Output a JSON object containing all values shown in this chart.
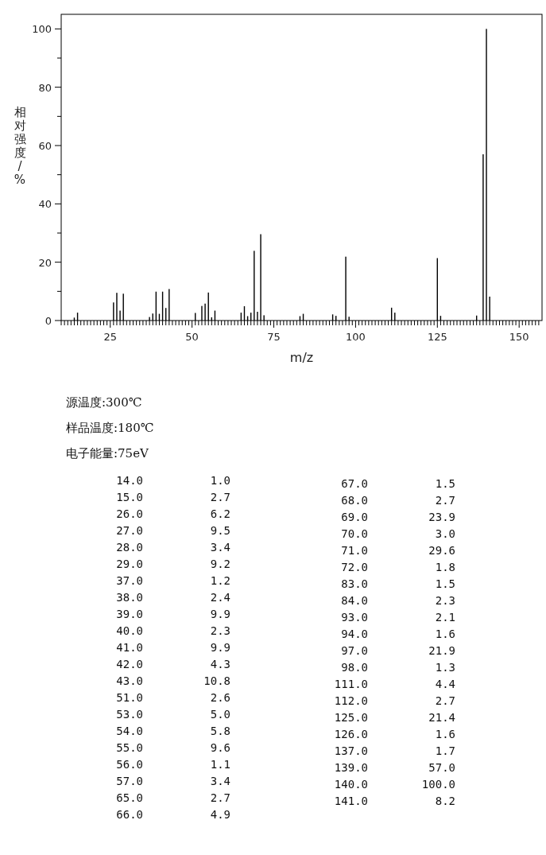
{
  "chart_data": {
    "type": "bar",
    "xlabel": "m/z",
    "ylabel": "相对强度/%",
    "color": "#000000",
    "x": [
      14,
      15,
      26,
      27,
      28,
      29,
      37,
      38,
      39,
      40,
      41,
      42,
      43,
      51,
      53,
      54,
      55,
      56,
      57,
      65,
      66,
      67,
      68,
      69,
      70,
      71,
      72,
      83,
      84,
      93,
      94,
      97,
      98,
      111,
      112,
      125,
      126,
      137,
      139,
      140,
      141
    ],
    "values": [
      1.0,
      2.7,
      6.2,
      9.5,
      3.4,
      9.2,
      1.2,
      2.4,
      9.9,
      2.3,
      9.9,
      4.3,
      10.8,
      2.6,
      5.0,
      5.8,
      9.6,
      1.1,
      3.4,
      2.7,
      4.9,
      1.5,
      2.7,
      23.9,
      3.0,
      29.6,
      1.8,
      1.5,
      2.3,
      2.1,
      1.6,
      21.9,
      1.3,
      4.4,
      2.7,
      21.4,
      1.6,
      1.7,
      57.0,
      100.0,
      8.2
    ],
    "xlim": [
      10,
      157
    ],
    "ylim": [
      0,
      105
    ],
    "xticks": [
      {
        "value": 10,
        "label": null
      },
      {
        "value": 11,
        "label": null
      },
      {
        "value": 12,
        "label": null
      },
      {
        "value": 13,
        "label": null
      },
      {
        "value": 14,
        "label": null
      },
      {
        "value": 15,
        "label": null
      },
      {
        "value": 16,
        "label": null
      },
      {
        "value": 17,
        "label": null
      },
      {
        "value": 18,
        "label": null
      },
      {
        "value": 19,
        "label": null
      },
      {
        "value": 20,
        "label": null
      },
      {
        "value": 21,
        "label": null
      },
      {
        "value": 22,
        "label": null
      },
      {
        "value": 23,
        "label": null
      },
      {
        "value": 24,
        "label": null
      },
      25,
      {
        "value": 26,
        "label": null
      },
      {
        "value": 27,
        "label": null
      },
      {
        "value": 28,
        "label": null
      },
      {
        "value": 29,
        "label": null
      },
      {
        "value": 30,
        "label": null
      },
      {
        "value": 31,
        "label": null
      },
      {
        "value": 32,
        "label": null
      },
      {
        "value": 33,
        "label": null
      },
      {
        "value": 34,
        "label": null
      },
      {
        "value": 35,
        "label": null
      },
      {
        "value": 36,
        "label": null
      },
      {
        "value": 37,
        "label": null
      },
      {
        "value": 38,
        "label": null
      },
      {
        "value": 39,
        "label": null
      },
      {
        "value": 40,
        "label": null
      },
      {
        "value": 41,
        "label": null
      },
      {
        "value": 42,
        "label": null
      },
      {
        "value": 43,
        "label": null
      },
      {
        "value": 44,
        "label": null
      },
      {
        "value": 45,
        "label": null
      },
      {
        "value": 46,
        "label": null
      },
      {
        "value": 47,
        "label": null
      },
      {
        "value": 48,
        "label": null
      },
      {
        "value": 49,
        "label": null
      },
      50,
      {
        "value": 51,
        "label": null
      },
      {
        "value": 52,
        "label": null
      },
      {
        "value": 53,
        "label": null
      },
      {
        "value": 54,
        "label": null
      },
      {
        "value": 55,
        "label": null
      },
      {
        "value": 56,
        "label": null
      },
      {
        "value": 57,
        "label": null
      },
      {
        "value": 58,
        "label": null
      },
      {
        "value": 59,
        "label": null
      },
      {
        "value": 60,
        "label": null
      },
      {
        "value": 61,
        "label": null
      },
      {
        "value": 62,
        "label": null
      },
      {
        "value": 63,
        "label": null
      },
      {
        "value": 64,
        "label": null
      },
      {
        "value": 65,
        "label": null
      },
      {
        "value": 66,
        "label": null
      },
      {
        "value": 67,
        "label": null
      },
      {
        "value": 68,
        "label": null
      },
      {
        "value": 69,
        "label": null
      },
      {
        "value": 70,
        "label": null
      },
      {
        "value": 71,
        "label": null
      },
      {
        "value": 72,
        "label": null
      },
      {
        "value": 73,
        "label": null
      },
      {
        "value": 74,
        "label": null
      },
      75,
      {
        "value": 76,
        "label": null
      },
      {
        "value": 77,
        "label": null
      },
      {
        "value": 78,
        "label": null
      },
      {
        "value": 79,
        "label": null
      },
      {
        "value": 80,
        "label": null
      },
      {
        "value": 81,
        "label": null
      },
      {
        "value": 82,
        "label": null
      },
      {
        "value": 83,
        "label": null
      },
      {
        "value": 84,
        "label": null
      },
      {
        "value": 85,
        "label": null
      },
      {
        "value": 86,
        "label": null
      },
      {
        "value": 87,
        "label": null
      },
      {
        "value": 88,
        "label": null
      },
      {
        "value": 89,
        "label": null
      },
      {
        "value": 90,
        "label": null
      },
      {
        "value": 91,
        "label": null
      },
      {
        "value": 92,
        "label": null
      },
      {
        "value": 93,
        "label": null
      },
      {
        "value": 94,
        "label": null
      },
      {
        "value": 95,
        "label": null
      },
      {
        "value": 96,
        "label": null
      },
      {
        "value": 97,
        "label": null
      },
      {
        "value": 98,
        "label": null
      },
      {
        "value": 99,
        "label": null
      },
      100,
      {
        "value": 101,
        "label": null
      },
      {
        "value": 102,
        "label": null
      },
      {
        "value": 103,
        "label": null
      },
      {
        "value": 104,
        "label": null
      },
      {
        "value": 105,
        "label": null
      },
      {
        "value": 106,
        "label": null
      },
      {
        "value": 107,
        "label": null
      },
      {
        "value": 108,
        "label": null
      },
      {
        "value": 109,
        "label": null
      },
      {
        "value": 110,
        "label": null
      },
      {
        "value": 111,
        "label": null
      },
      {
        "value": 112,
        "label": null
      },
      {
        "value": 113,
        "label": null
      },
      {
        "value": 114,
        "label": null
      },
      {
        "value": 115,
        "label": null
      },
      {
        "value": 116,
        "label": null
      },
      {
        "value": 117,
        "label": null
      },
      {
        "value": 118,
        "label": null
      },
      {
        "value": 119,
        "label": null
      },
      {
        "value": 120,
        "label": null
      },
      {
        "value": 121,
        "label": null
      },
      {
        "value": 122,
        "label": null
      },
      {
        "value": 123,
        "label": null
      },
      {
        "value": 124,
        "label": null
      },
      125,
      {
        "value": 126,
        "label": null
      },
      {
        "value": 127,
        "label": null
      },
      {
        "value": 128,
        "label": null
      },
      {
        "value": 129,
        "label": null
      },
      {
        "value": 130,
        "label": null
      },
      {
        "value": 131,
        "label": null
      },
      {
        "value": 132,
        "label": null
      },
      {
        "value": 133,
        "label": null
      },
      {
        "value": 134,
        "label": null
      },
      {
        "value": 135,
        "label": null
      },
      {
        "value": 136,
        "label": null
      },
      {
        "value": 137,
        "label": null
      },
      {
        "value": 138,
        "label": null
      },
      {
        "value": 139,
        "label": null
      },
      {
        "value": 140,
        "label": null
      },
      {
        "value": 141,
        "label": null
      },
      {
        "value": 142,
        "label": null
      },
      {
        "value": 143,
        "label": null
      },
      {
        "value": 144,
        "label": null
      },
      {
        "value": 145,
        "label": null
      },
      {
        "value": 146,
        "label": null
      },
      {
        "value": 147,
        "label": null
      },
      {
        "value": 148,
        "label": null
      },
      {
        "value": 149,
        "label": null
      },
      150,
      {
        "value": 151,
        "label": null
      },
      {
        "value": 152,
        "label": null
      },
      {
        "value": 153,
        "label": null
      },
      {
        "value": 154,
        "label": null
      },
      {
        "value": 155,
        "label": null
      },
      {
        "value": 156,
        "label": null
      }
    ],
    "yticks": [
      0,
      {
        "value": 10,
        "label": null
      },
      20,
      {
        "value": 30,
        "label": null
      },
      40,
      {
        "value": 50,
        "label": null
      },
      60,
      {
        "value": 70,
        "label": null
      },
      80,
      {
        "value": 90,
        "label": null
      },
      100
    ],
    "annotations": [
      "源温度:300℃",
      "样品温度:180℃",
      "电子能量:75eV",
      "14.0",
      "1.0",
      "15.0",
      "2.7",
      "26.0",
      "6.2",
      "27.0",
      "9.5",
      "28.0",
      "3.4",
      "29.0",
      "9.2",
      "37.0",
      "1.2",
      "38.0",
      "2.4",
      "39.0",
      "9.9",
      "40.0",
      "2.3",
      "41.0",
      "9.9",
      "42.0",
      "4.3",
      "43.0",
      "10.8",
      "51.0",
      "2.6",
      "53.0",
      "5.0",
      "54.0",
      "5.8",
      "55.0",
      "9.6",
      "56.0",
      "1.1",
      "57.0",
      "3.4",
      "65.0",
      "2.7",
      "66.0",
      "4.9",
      "67.0",
      "1.5",
      "68.0",
      "2.7",
      "69.0",
      "23.9",
      "70.0",
      "3.0",
      "71.0",
      "29.6",
      "72.0",
      "1.8",
      "83.0",
      "1.5",
      "84.0",
      "2.3",
      "93.0",
      "2.1",
      "94.0",
      "1.6",
      "97.0",
      "21.9",
      "98.0",
      "1.3",
      "111.0",
      "4.4",
      "112.0",
      "2.7",
      "125.0",
      "21.4",
      "126.0",
      "1.6",
      "137.0",
      "1.7",
      "139.0",
      "57.0",
      "140.0",
      "100.0",
      "141.0",
      "8.2"
    ],
    "grid": false
  }
}
